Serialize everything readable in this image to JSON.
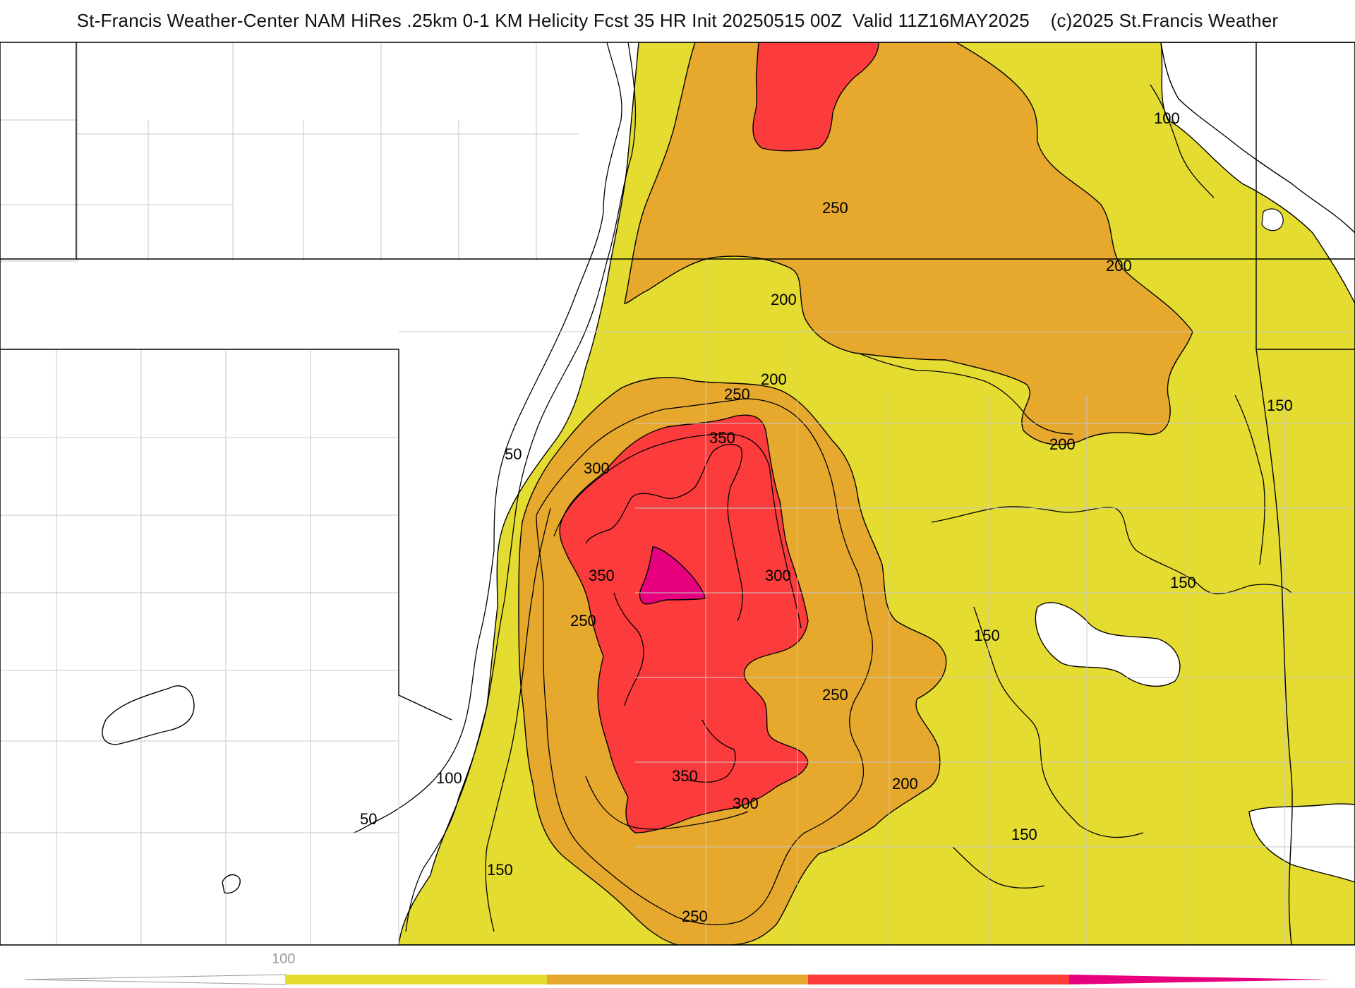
{
  "title": "St-Francis Weather-Center NAM HiRes .25km 0-1 KM Helicity Fcst 35 HR Init 20250515 00Z  Valid 11Z16MAY2025    (c)2025 St.Francis Weather",
  "map": {
    "contour_labels": [
      "50",
      "100",
      "150",
      "200",
      "250",
      "300",
      "350"
    ],
    "legend": {
      "visible_tick": "100",
      "bins": [
        {
          "range": "<100",
          "color": "#ffffff"
        },
        {
          "range": "100-200",
          "color": "#e4dc30"
        },
        {
          "range": "200-300",
          "color": "#e6a92e"
        },
        {
          "range": "300-400",
          "color": "#fb3b3c"
        },
        {
          "range": ">400",
          "color": "#e6007d"
        }
      ]
    },
    "colors": {
      "fill_100": "#e4dc30",
      "fill_200": "#e6a92e",
      "fill_300": "#fb3b3c",
      "fill_400": "#e6007d",
      "contour": "#000000",
      "county_lines": "#c8c8c8",
      "state_lines": "#000000"
    }
  }
}
